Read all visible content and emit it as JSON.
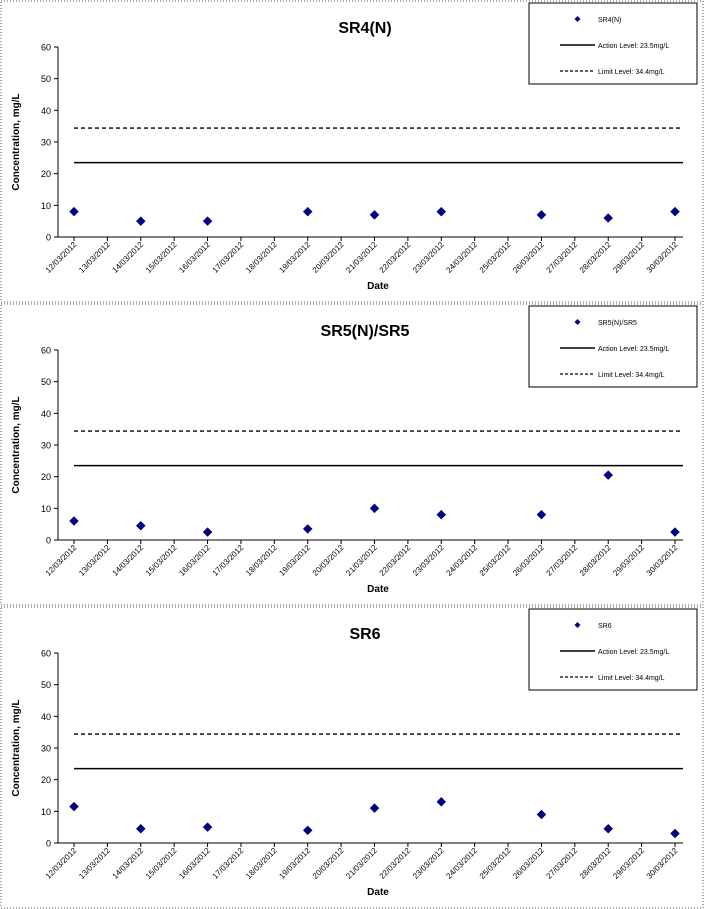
{
  "chart_data": [
    {
      "type": "scatter",
      "title": "SR4(N)",
      "xlabel": "Date",
      "ylabel": "Concentration, mg/L",
      "ylim": [
        0,
        60
      ],
      "yticks": [
        0,
        10,
        20,
        30,
        40,
        50,
        60
      ],
      "x_tick_labels": [
        "12/03/2012",
        "13/03/2012",
        "14/03/2012",
        "15/03/2012",
        "16/03/2012",
        "17/03/2012",
        "18/03/2012",
        "19/03/2012",
        "20/03/2012",
        "21/03/2012",
        "22/03/2012",
        "23/03/2012",
        "24/03/2012",
        "25/03/2012",
        "26/03/2012",
        "27/03/2012",
        "28/03/2012",
        "29/03/2012",
        "30/03/2012"
      ],
      "series": [
        {
          "name": "SR4(N)",
          "color": "#000080",
          "marker": "diamond",
          "points": [
            {
              "x": "12/03/2012",
              "y": 8
            },
            {
              "x": "14/03/2012",
              "y": 5
            },
            {
              "x": "16/03/2012",
              "y": 5
            },
            {
              "x": "19/03/2012",
              "y": 8
            },
            {
              "x": "21/03/2012",
              "y": 7
            },
            {
              "x": "23/03/2012",
              "y": 8
            },
            {
              "x": "26/03/2012",
              "y": 7
            },
            {
              "x": "28/03/2012",
              "y": 6
            },
            {
              "x": "30/03/2012",
              "y": 8
            }
          ]
        }
      ],
      "reference_lines": [
        {
          "name": "Action Level: 23.5mg/L",
          "value": 23.5,
          "style": "solid"
        },
        {
          "name": "Limit Level: 34.4mg/L",
          "value": 34.4,
          "style": "dashed"
        }
      ],
      "legend_position": "top-right"
    },
    {
      "type": "scatter",
      "title": "SR5(N)/SR5",
      "xlabel": "Date",
      "ylabel": "Concentration, mg/L",
      "ylim": [
        0,
        60
      ],
      "yticks": [
        0,
        10,
        20,
        30,
        40,
        50,
        60
      ],
      "x_tick_labels": [
        "12/03/2012",
        "13/03/2012",
        "14/03/2012",
        "15/03/2012",
        "16/03/2012",
        "17/03/2012",
        "18/03/2012",
        "19/03/2012",
        "20/03/2012",
        "21/03/2012",
        "22/03/2012",
        "23/03/2012",
        "24/03/2012",
        "25/03/2012",
        "26/03/2012",
        "27/03/2012",
        "28/03/2012",
        "29/03/2012",
        "30/03/2012"
      ],
      "series": [
        {
          "name": "SR5(N)/SR5",
          "color": "#000080",
          "marker": "diamond",
          "points": [
            {
              "x": "12/03/2012",
              "y": 6
            },
            {
              "x": "14/03/2012",
              "y": 4.5
            },
            {
              "x": "16/03/2012",
              "y": 2.5
            },
            {
              "x": "19/03/2012",
              "y": 3.5
            },
            {
              "x": "21/03/2012",
              "y": 10
            },
            {
              "x": "23/03/2012",
              "y": 8
            },
            {
              "x": "26/03/2012",
              "y": 8
            },
            {
              "x": "28/03/2012",
              "y": 20.5
            },
            {
              "x": "30/03/2012",
              "y": 2.5
            }
          ]
        }
      ],
      "reference_lines": [
        {
          "name": "Action Level: 23.5mg/L",
          "value": 23.5,
          "style": "solid"
        },
        {
          "name": "Limit Level: 34.4mg/L",
          "value": 34.4,
          "style": "dashed"
        }
      ],
      "legend_position": "top-right"
    },
    {
      "type": "scatter",
      "title": "SR6",
      "xlabel": "Date",
      "ylabel": "Concentration, mg/L",
      "ylim": [
        0,
        60
      ],
      "yticks": [
        0,
        10,
        20,
        30,
        40,
        50,
        60
      ],
      "x_tick_labels": [
        "12/03/2012",
        "13/03/2012",
        "14/03/2012",
        "15/03/2012",
        "16/03/2012",
        "17/03/2012",
        "18/03/2012",
        "19/03/2012",
        "20/03/2012",
        "21/03/2012",
        "22/03/2012",
        "23/03/2012",
        "24/03/2012",
        "25/03/2012",
        "26/03/2012",
        "27/03/2012",
        "28/03/2012",
        "29/03/2012",
        "30/03/2012"
      ],
      "series": [
        {
          "name": "SR6",
          "color": "#000080",
          "marker": "diamond",
          "points": [
            {
              "x": "12/03/2012",
              "y": 11.5
            },
            {
              "x": "14/03/2012",
              "y": 4.5
            },
            {
              "x": "16/03/2012",
              "y": 5
            },
            {
              "x": "19/03/2012",
              "y": 4
            },
            {
              "x": "21/03/2012",
              "y": 11
            },
            {
              "x": "23/03/2012",
              "y": 13
            },
            {
              "x": "26/03/2012",
              "y": 9
            },
            {
              "x": "28/03/2012",
              "y": 4.5
            },
            {
              "x": "30/03/2012",
              "y": 3
            }
          ]
        }
      ],
      "reference_lines": [
        {
          "name": "Action Level: 23.5mg/L",
          "value": 23.5,
          "style": "solid"
        },
        {
          "name": "Limit Level: 34.4mg/L",
          "value": 34.4,
          "style": "dashed"
        }
      ],
      "legend_position": "top-right"
    }
  ]
}
